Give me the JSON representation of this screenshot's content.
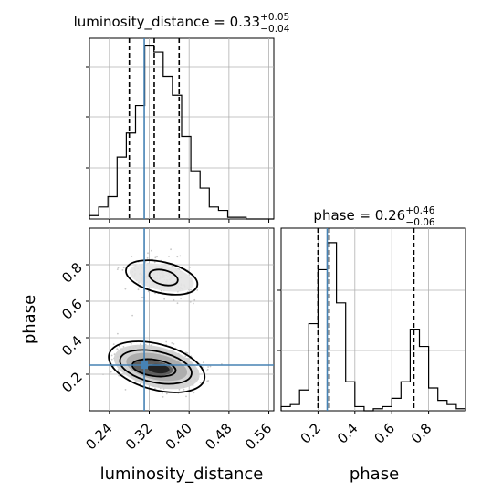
{
  "chart_data": [
    {
      "type": "histogram",
      "panel": "luminosity_distance marginal",
      "title": {
        "main": "luminosity_distance = 0.33",
        "sup": "+0.05",
        "sub": "−0.04"
      },
      "xlim": [
        0.2,
        0.57
      ],
      "bin_edges": [
        0.2,
        0.2185,
        0.237,
        0.2555,
        0.274,
        0.2925,
        0.311,
        0.3295,
        0.348,
        0.3665,
        0.385,
        0.4035,
        0.422,
        0.4405,
        0.459,
        0.4775,
        0.496,
        0.5145,
        0.533,
        0.5515,
        0.57
      ],
      "counts": [
        2,
        7,
        13,
        36,
        50,
        66,
        101,
        97,
        83,
        72,
        48,
        28,
        18,
        7,
        5,
        1,
        1,
        0,
        0,
        0
      ],
      "ylim": [
        0,
        105
      ],
      "quantiles": [
        0.28,
        0.33,
        0.38
      ],
      "truth": 0.31,
      "x_ticks": [
        0.24,
        0.32,
        0.4,
        0.48,
        0.56
      ]
    },
    {
      "type": "histogram",
      "panel": "phase marginal",
      "title": {
        "main": "phase = 0.26",
        "sup": "+0.46",
        "sub": "−0.06"
      },
      "xlim": [
        0.0,
        1.0
      ],
      "bin_edges": [
        0.0,
        0.05,
        0.1,
        0.15,
        0.2,
        0.25,
        0.3,
        0.35,
        0.4,
        0.45,
        0.5,
        0.55,
        0.6,
        0.65,
        0.7,
        0.75,
        0.8,
        0.85,
        0.9,
        0.95,
        1.0
      ],
      "counts": [
        2,
        3,
        10,
        42,
        68,
        81,
        52,
        14,
        2,
        0,
        1,
        2,
        6,
        14,
        39,
        31,
        11,
        5,
        3,
        1
      ],
      "ylim": [
        0,
        88
      ],
      "quantiles": [
        0.2,
        0.26,
        0.72
      ],
      "truth": 0.25,
      "x_ticks": [
        "0.2",
        "0.4",
        "0.6",
        "0.8"
      ],
      "xlabel": "phase"
    },
    {
      "type": "corner-2d",
      "panel": "luminosity_distance vs phase",
      "xlim": [
        0.2,
        0.57
      ],
      "ylim": [
        0.0,
        1.0
      ],
      "xlabel": "luminosity_distance",
      "ylabel": "phase",
      "x_ticks": [
        "0.24",
        "0.32",
        "0.40",
        "0.48",
        "0.56"
      ],
      "y_ticks": [
        "0.2",
        "0.4",
        "0.6",
        "0.8"
      ],
      "truth": {
        "x": 0.31,
        "y": 0.25
      },
      "modes": [
        {
          "x": 0.345,
          "y": 0.73,
          "weight": 0.3
        },
        {
          "x": 0.335,
          "y": 0.24,
          "weight": 0.7
        }
      ]
    }
  ]
}
